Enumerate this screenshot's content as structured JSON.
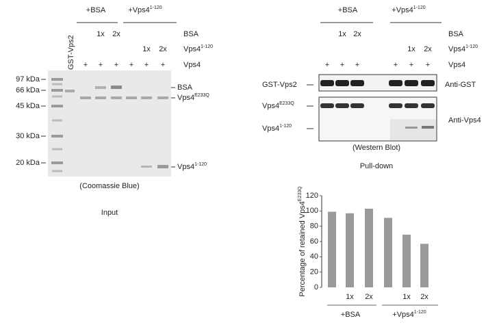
{
  "input_panel": {
    "groups": [
      {
        "text": "+BSA"
      },
      {
        "text": "+Vps4",
        "sup": "1-120"
      }
    ],
    "bsa_row": {
      "label": "BSA",
      "doses": [
        "1x",
        "2x"
      ]
    },
    "vps4_fragment_row": {
      "label": {
        "text": "Vps4",
        "sup": "1-120"
      },
      "doses": [
        "1x",
        "2x"
      ]
    },
    "vps4_row": {
      "label": "Vps4",
      "marks": [
        "+",
        "+",
        "+",
        "+",
        "+",
        "+"
      ]
    },
    "lane_label": "GST-Vps2",
    "markers": [
      "97 kDa",
      "66 kDa",
      "45 kDa",
      "30 kDa",
      "20 kDa"
    ],
    "band_labels": [
      {
        "text": "BSA"
      },
      {
        "text": "Vps4",
        "sup": "E233Q"
      },
      {
        "text": "Vps4",
        "sup": "1-120"
      }
    ],
    "stain": "(Coomassie Blue)",
    "title": "Input"
  },
  "pulldown_panel": {
    "groups": [
      {
        "text": "+BSA"
      },
      {
        "text": "+Vps4",
        "sup": "1-120"
      }
    ],
    "bsa_row": {
      "label": "BSA",
      "doses": [
        "1x",
        "2x"
      ]
    },
    "vps4_fragment_row": {
      "label": {
        "text": "Vps4",
        "sup": "1-120"
      },
      "doses": [
        "1x",
        "2x"
      ]
    },
    "vps4_row": {
      "label": "Vps4",
      "marks": [
        "+",
        "+",
        "+",
        "+",
        "+",
        "+"
      ]
    },
    "blot_rows": [
      {
        "text": "GST-Vps2"
      },
      {
        "text": "Vps4",
        "sup": "E233Q"
      },
      {
        "text": "Vps4",
        "sup": "1-120"
      }
    ],
    "antibodies": [
      "Anti-GST",
      "Anti-Vps4"
    ],
    "method": "(Western Blot)",
    "title": "Pull-down"
  },
  "chart_data": {
    "type": "bar",
    "y_label": {
      "text": "Percentage of retained Vps4",
      "sup": "E233Q"
    },
    "categories": [
      null,
      "1x",
      "2x",
      null,
      "1x",
      "2x"
    ],
    "groups": [
      {
        "text": "+BSA"
      },
      {
        "text": "+Vps4",
        "sup": "1-120"
      }
    ],
    "values": [
      99,
      97,
      103,
      91,
      69,
      57
    ],
    "color": "#9a9a9a",
    "ylim": [
      0,
      120
    ],
    "yticks": [
      0,
      20,
      40,
      60,
      80,
      100,
      120
    ]
  }
}
